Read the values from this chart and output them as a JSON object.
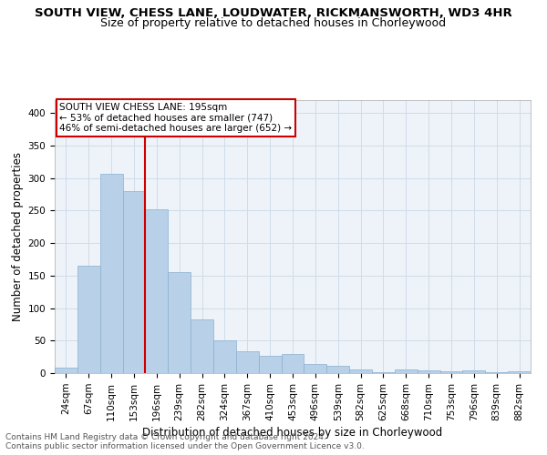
{
  "title": "SOUTH VIEW, CHESS LANE, LOUDWATER, RICKMANSWORTH, WD3 4HR",
  "subtitle": "Size of property relative to detached houses in Chorleywood",
  "xlabel": "Distribution of detached houses by size in Chorleywood",
  "ylabel": "Number of detached properties",
  "footnote1": "Contains HM Land Registry data © Crown copyright and database right 2024.",
  "footnote2": "Contains public sector information licensed under the Open Government Licence v3.0.",
  "annotation_line1": "SOUTH VIEW CHESS LANE: 195sqm",
  "annotation_line2": "← 53% of detached houses are smaller (747)",
  "annotation_line3": "46% of semi-detached houses are larger (652) →",
  "bar_labels": [
    "24sqm",
    "67sqm",
    "110sqm",
    "153sqm",
    "196sqm",
    "239sqm",
    "282sqm",
    "324sqm",
    "367sqm",
    "410sqm",
    "453sqm",
    "496sqm",
    "539sqm",
    "582sqm",
    "625sqm",
    "668sqm",
    "710sqm",
    "753sqm",
    "796sqm",
    "839sqm",
    "882sqm"
  ],
  "bar_values": [
    9,
    165,
    307,
    280,
    252,
    155,
    83,
    50,
    34,
    27,
    29,
    14,
    11,
    5,
    2,
    5,
    4,
    3,
    4,
    2,
    3
  ],
  "bar_color": "#b8d0e8",
  "bar_edge_color": "#8ab0d0",
  "vline_color": "#cc0000",
  "grid_color": "#d0dce8",
  "background_color": "#eef3f9",
  "ylim": [
    0,
    420
  ],
  "yticks": [
    0,
    50,
    100,
    150,
    200,
    250,
    300,
    350,
    400
  ],
  "title_fontsize": 9.5,
  "subtitle_fontsize": 9,
  "ylabel_fontsize": 8.5,
  "xlabel_fontsize": 8.5,
  "tick_fontsize": 7.5,
  "annotation_fontsize": 7.5,
  "footnote_fontsize": 6.5
}
